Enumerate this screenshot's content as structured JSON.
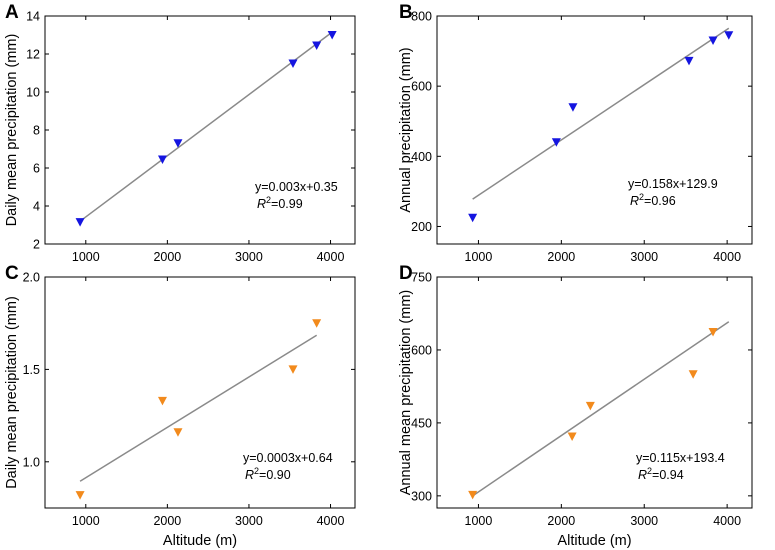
{
  "chart_data": [
    {
      "panel": "A",
      "type": "scatter",
      "xlabel": "",
      "ylabel": "Daily mean precipitation (mm)",
      "xlim": [
        500,
        4300
      ],
      "ylim": [
        2,
        14
      ],
      "xticks": [
        1000,
        2000,
        3000,
        4000
      ],
      "yticks": [
        2,
        4,
        6,
        8,
        10,
        12,
        14
      ],
      "grid": false,
      "marker": "down-triangle",
      "color": "#1515e0",
      "points": [
        {
          "x": 930,
          "y": 3.15
        },
        {
          "x": 1940,
          "y": 6.45
        },
        {
          "x": 2130,
          "y": 7.3
        },
        {
          "x": 3540,
          "y": 11.5
        },
        {
          "x": 3830,
          "y": 12.45
        },
        {
          "x": 4020,
          "y": 13.0
        }
      ],
      "fit_line": {
        "x": [
          930,
          4020
        ],
        "y": [
          3.2,
          13.15
        ]
      },
      "equation": "y=0.003x+0.35",
      "r2_label": "R",
      "r2_exp": "2",
      "r2_value": "=0.99"
    },
    {
      "panel": "B",
      "type": "scatter",
      "xlabel": "",
      "ylabel": "Annual precipitation (mm)",
      "xlim": [
        500,
        4300
      ],
      "ylim": [
        150,
        800
      ],
      "xticks": [
        1000,
        2000,
        3000,
        4000
      ],
      "yticks": [
        200,
        400,
        600,
        800
      ],
      "grid": false,
      "marker": "down-triangle",
      "color": "#1515e0",
      "points": [
        {
          "x": 930,
          "y": 225
        },
        {
          "x": 1940,
          "y": 440
        },
        {
          "x": 2140,
          "y": 540
        },
        {
          "x": 3540,
          "y": 672
        },
        {
          "x": 3830,
          "y": 730
        },
        {
          "x": 4020,
          "y": 745
        }
      ],
      "fit_line": {
        "x": [
          930,
          4020
        ],
        "y": [
          278,
          765
        ]
      },
      "equation": "y=0.158x+129.9",
      "r2_label": "R",
      "r2_exp": "2",
      "r2_value": "=0.96"
    },
    {
      "panel": "C",
      "type": "scatter",
      "xlabel": "Altitude (m)",
      "ylabel": "Daily mean precipitation (mm)",
      "xlim": [
        500,
        4300
      ],
      "ylim": [
        0.75,
        2.0
      ],
      "xticks": [
        1000,
        2000,
        3000,
        4000
      ],
      "yticks": [
        1.0,
        1.5,
        2.0
      ],
      "ytick_labels": [
        "1.0",
        "1.5",
        "2.0"
      ],
      "grid": false,
      "marker": "down-triangle",
      "color": "#f28a1c",
      "points": [
        {
          "x": 930,
          "y": 0.82
        },
        {
          "x": 1940,
          "y": 1.33
        },
        {
          "x": 2130,
          "y": 1.16
        },
        {
          "x": 3540,
          "y": 1.5
        },
        {
          "x": 3830,
          "y": 1.75
        }
      ],
      "fit_line": {
        "x": [
          930,
          3830
        ],
        "y": [
          0.895,
          1.685
        ]
      },
      "equation": "y=0.0003x+0.64",
      "r2_label": "R",
      "r2_exp": "2",
      "r2_value": "=0.90"
    },
    {
      "panel": "D",
      "type": "scatter",
      "xlabel": "Altitude (m)",
      "ylabel": "Annual mean precipitation (mm)",
      "xlim": [
        500,
        4300
      ],
      "ylim": [
        275,
        750
      ],
      "xticks": [
        1000,
        2000,
        3000,
        4000
      ],
      "yticks": [
        300,
        450,
        600,
        750
      ],
      "grid": false,
      "marker": "down-triangle",
      "color": "#f28a1c",
      "points": [
        {
          "x": 930,
          "y": 302
        },
        {
          "x": 2130,
          "y": 422
        },
        {
          "x": 2350,
          "y": 485
        },
        {
          "x": 3590,
          "y": 550
        },
        {
          "x": 3830,
          "y": 637
        }
      ],
      "fit_line": {
        "x": [
          930,
          4020
        ],
        "y": [
          300,
          658
        ]
      },
      "equation": "y=0.115x+193.4",
      "r2_label": "R",
      "r2_exp": "2",
      "r2_value": "=0.94"
    }
  ]
}
